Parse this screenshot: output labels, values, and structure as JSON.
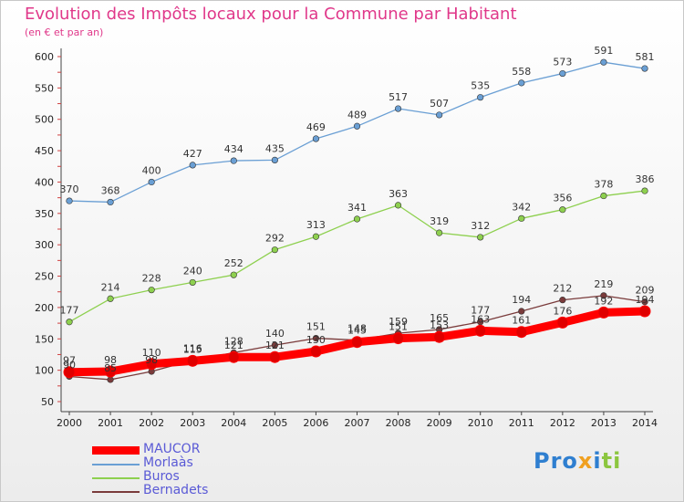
{
  "chart_data": {
    "type": "line",
    "title": "Evolution des Impôts locaux pour la Commune par Habitant",
    "subtitle": "(en € et par an)",
    "xlabel": "",
    "ylabel": "",
    "categories": [
      "2000",
      "2001",
      "2002",
      "2003",
      "2004",
      "2005",
      "2006",
      "2007",
      "2008",
      "2009",
      "2010",
      "2011",
      "2012",
      "2013",
      "2014"
    ],
    "ylim": [
      50,
      600
    ],
    "yticks": [
      50,
      100,
      150,
      200,
      250,
      300,
      350,
      400,
      450,
      500,
      550,
      600
    ],
    "grid": false,
    "legend_position": "bottom-left",
    "series": [
      {
        "name": "MAUCOR",
        "color": "#ff0000",
        "values": [
          97,
          98,
          110,
          115,
          121,
          121,
          130,
          145,
          151,
          153,
          163,
          161,
          176,
          192,
          194
        ]
      },
      {
        "name": "Morlaàs",
        "color": "#6a9fd4",
        "values": [
          370,
          368,
          400,
          427,
          434,
          435,
          469,
          489,
          517,
          507,
          535,
          558,
          573,
          591,
          581
        ]
      },
      {
        "name": "Buros",
        "color": "#8ed04f",
        "values": [
          177,
          214,
          228,
          240,
          252,
          292,
          313,
          341,
          363,
          319,
          312,
          342,
          356,
          378,
          386
        ]
      },
      {
        "name": "Bernadets",
        "color": "#7a3b3b",
        "values": [
          90,
          85,
          98,
          116,
          128,
          140,
          151,
          148,
          159,
          165,
          177,
          194,
          212,
          219,
          209
        ]
      }
    ]
  },
  "logo": {
    "p1": "Pro",
    "p2": "x",
    "p3": "i",
    "p4": "ti"
  }
}
